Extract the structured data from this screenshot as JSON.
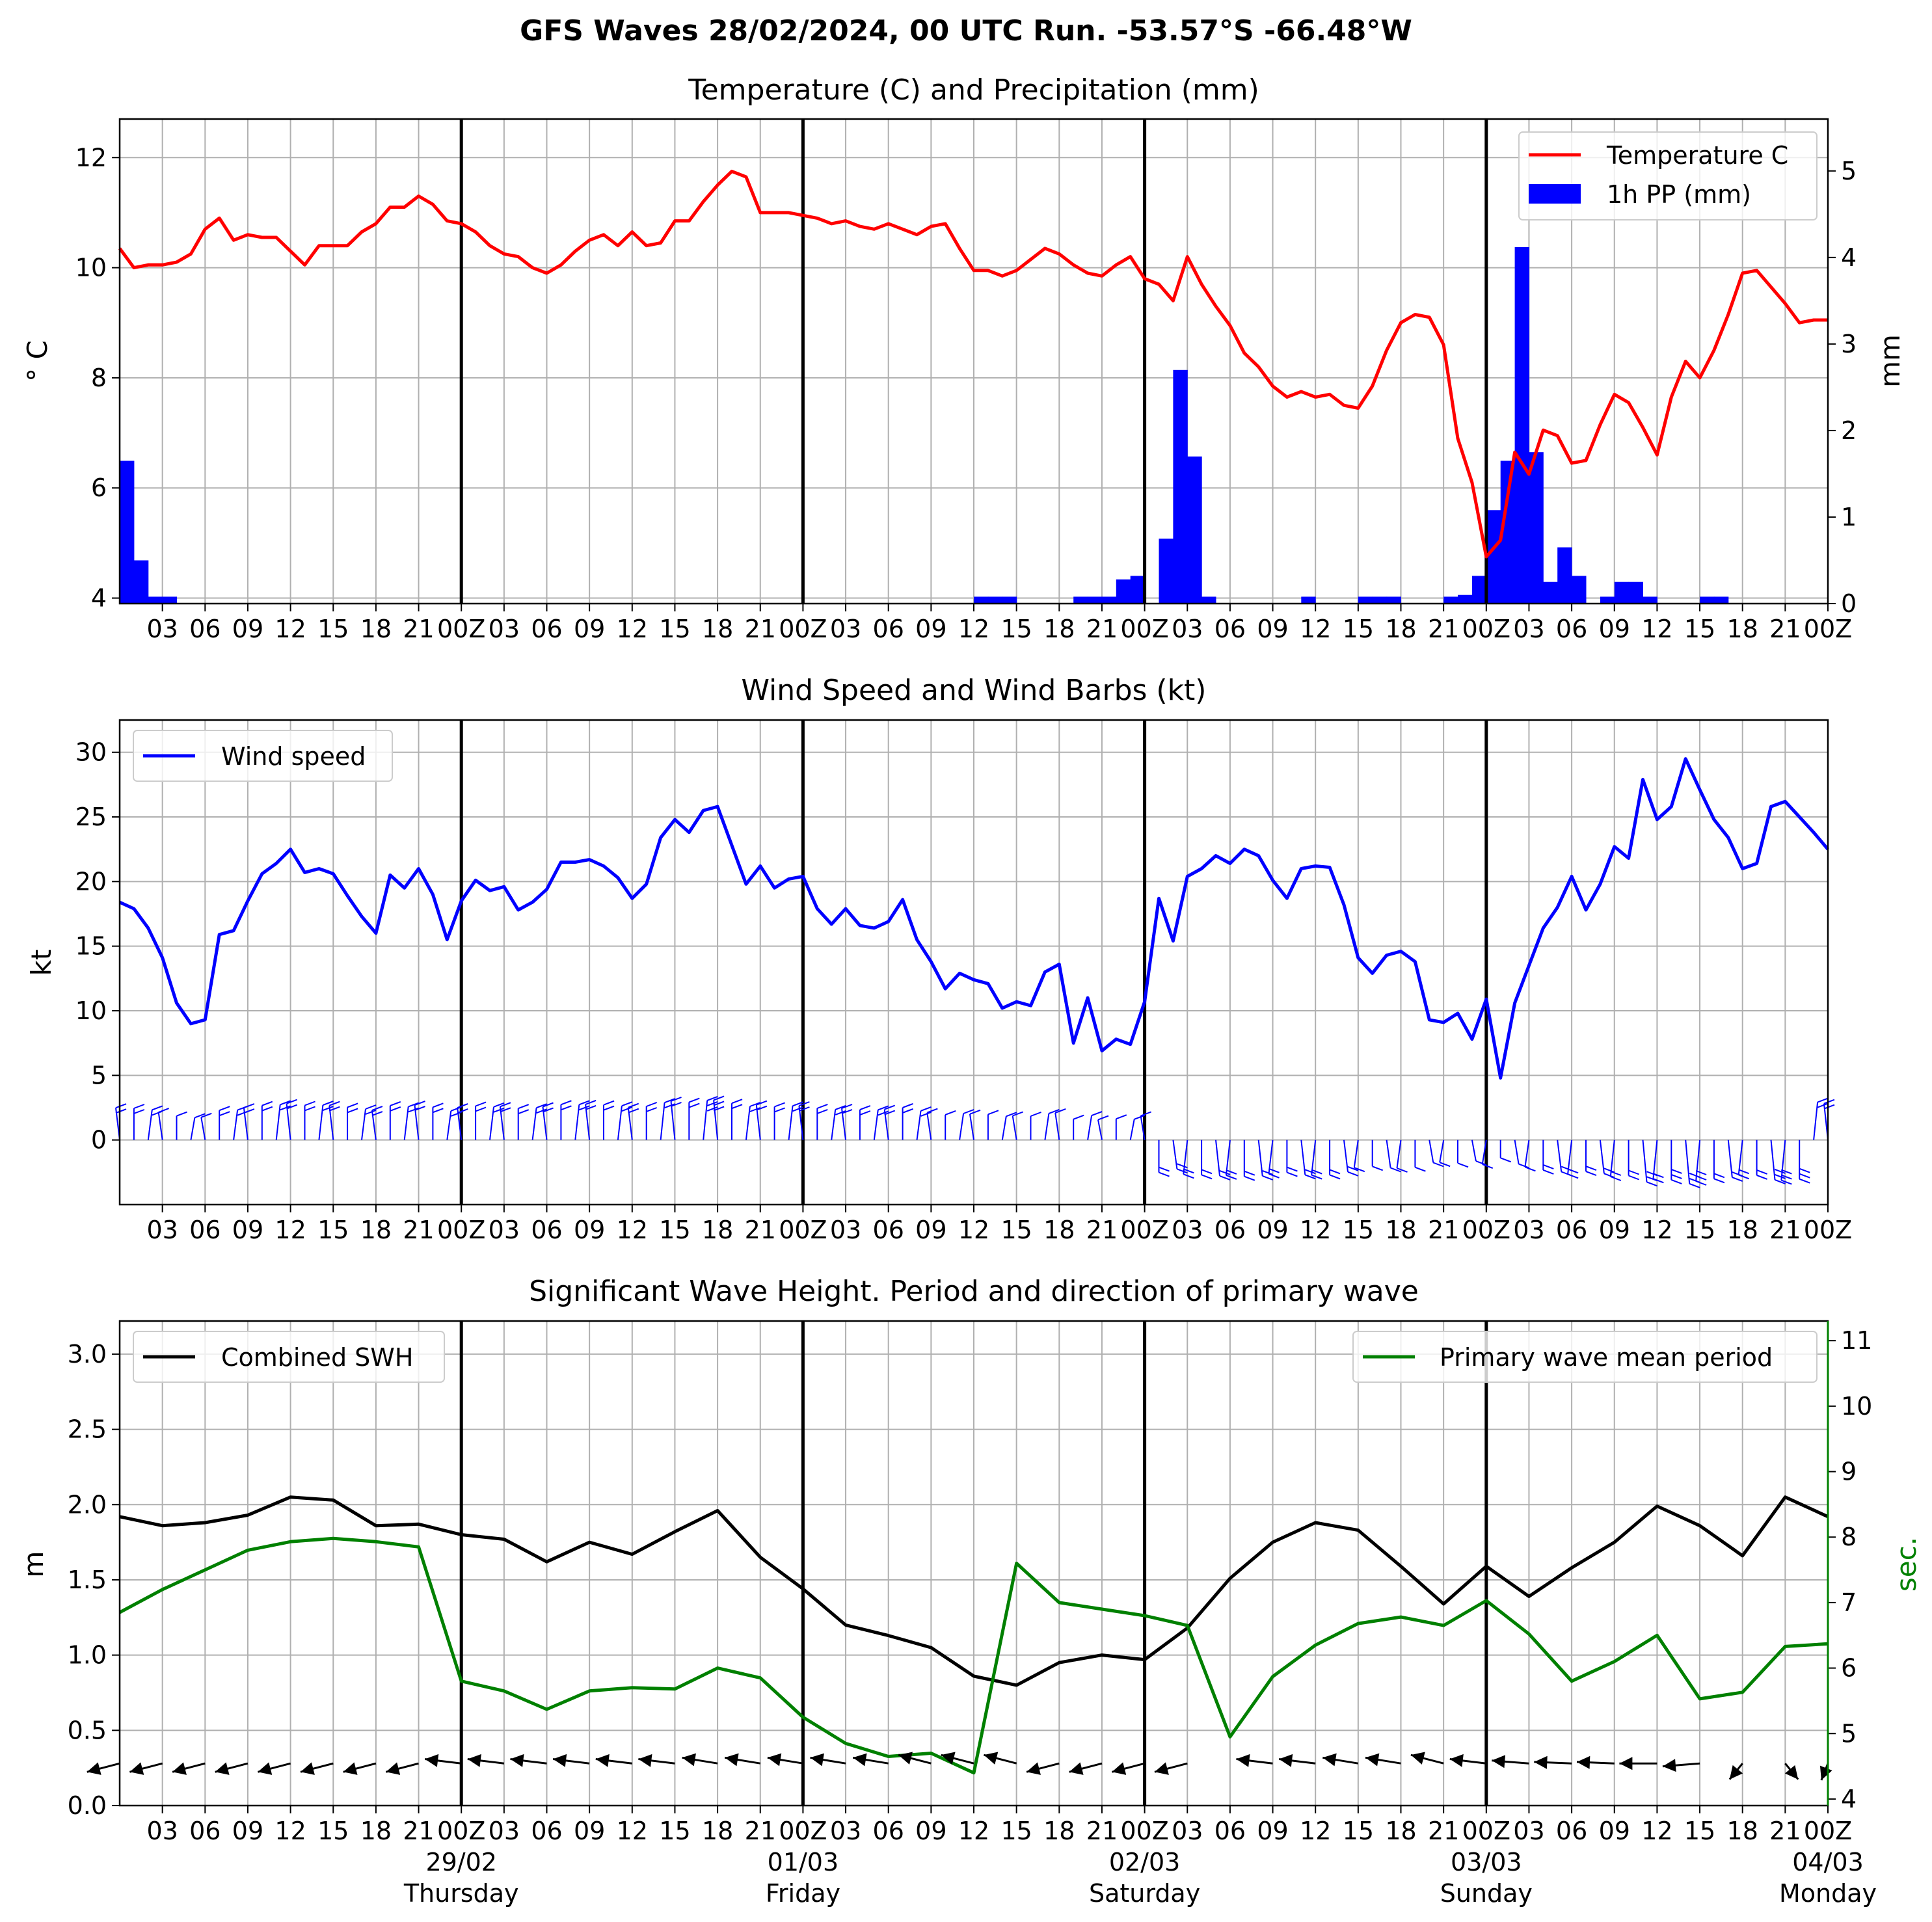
{
  "suptitle": "GFS Waves 28/02/2024, 00 UTC Run. -53.57°S -66.48°W",
  "time_axis": {
    "hours_per_tick": 3,
    "tick_labels": [
      "03",
      "06",
      "09",
      "12",
      "15",
      "18",
      "21",
      "00Z",
      "03",
      "06",
      "09",
      "12",
      "15",
      "18",
      "21",
      "00Z",
      "03",
      "06",
      "09",
      "12",
      "15",
      "18",
      "21",
      "00Z",
      "03",
      "06",
      "09",
      "12",
      "15",
      "18",
      "21",
      "00Z",
      "03",
      "06",
      "09",
      "12",
      "15",
      "18",
      "21",
      "00Z"
    ],
    "day_labels": [
      {
        "date": "29/02",
        "weekday": "Thursday"
      },
      {
        "date": "01/03",
        "weekday": "Friday"
      },
      {
        "date": "02/03",
        "weekday": "Saturday"
      },
      {
        "date": "03/03",
        "weekday": "Sunday"
      },
      {
        "date": "04/03",
        "weekday": "Monday"
      }
    ]
  },
  "chart_data": [
    {
      "type": "line+bar",
      "title": "Temperature (C) and Precipitation (mm)",
      "ylabel": "° C",
      "ylabel2": "mm",
      "ylim": [
        3.9,
        12.7
      ],
      "ylim2": [
        0,
        5.6
      ],
      "yticks": [
        4,
        6,
        8,
        10,
        12
      ],
      "yticks2": [
        0,
        1,
        2,
        3,
        4,
        5
      ],
      "grid": true,
      "legend": "top-right",
      "series": [
        {
          "name": "Temperature C",
          "color": "#ff0000",
          "step_hours": 1,
          "values": [
            10.35,
            10.0,
            10.05,
            10.05,
            10.1,
            10.25,
            10.7,
            10.9,
            10.5,
            10.6,
            10.55,
            10.55,
            10.3,
            10.05,
            10.4,
            10.4,
            10.4,
            10.65,
            10.8,
            11.1,
            11.1,
            11.3,
            11.15,
            10.85,
            10.8,
            10.65,
            10.4,
            10.25,
            10.2,
            10.0,
            9.9,
            10.05,
            10.3,
            10.5,
            10.6,
            10.4,
            10.65,
            10.4,
            10.45,
            10.85,
            10.85,
            11.2,
            11.5,
            11.75,
            11.65,
            11.0,
            11.0,
            11.0,
            10.95,
            10.9,
            10.8,
            10.85,
            10.75,
            10.7,
            10.8,
            10.7,
            10.6,
            10.75,
            10.8,
            10.35,
            9.95,
            9.95,
            9.85,
            9.95,
            10.15,
            10.35,
            10.25,
            10.05,
            9.9,
            9.85,
            10.05,
            10.2,
            9.8,
            9.7,
            9.4,
            10.2,
            9.7,
            9.3,
            8.95,
            8.45,
            8.2,
            7.85,
            7.65,
            7.75,
            7.65,
            7.7,
            7.5,
            7.45,
            7.85,
            8.5,
            9.0,
            9.15,
            9.1,
            8.6,
            6.9,
            6.1,
            4.75,
            5.05,
            6.65,
            6.25,
            7.05,
            6.95,
            6.45,
            6.5,
            7.15,
            7.7,
            7.55,
            7.1,
            6.6,
            7.65,
            8.3,
            8.0,
            8.5,
            9.15,
            9.9,
            9.95,
            9.65,
            9.35,
            9.0,
            9.05,
            9.05
          ]
        },
        {
          "name": "1h PP (mm)",
          "color": "#0000ff",
          "type": "bar",
          "step_hours": 1,
          "values": [
            1.65,
            0.5,
            0.08,
            0.08,
            0,
            0,
            0,
            0,
            0,
            0,
            0,
            0,
            0,
            0,
            0,
            0,
            0,
            0,
            0,
            0,
            0,
            0,
            0,
            0,
            0,
            0,
            0,
            0,
            0,
            0,
            0,
            0,
            0,
            0,
            0,
            0,
            0,
            0,
            0,
            0,
            0,
            0,
            0,
            0,
            0,
            0,
            0,
            0,
            0,
            0,
            0,
            0,
            0,
            0,
            0,
            0,
            0,
            0,
            0,
            0,
            0.08,
            0.08,
            0.08,
            0,
            0,
            0,
            0,
            0.08,
            0.08,
            0.08,
            0.28,
            0.32,
            0,
            0.75,
            2.7,
            1.7,
            0.08,
            0,
            0,
            0,
            0,
            0,
            0,
            0.08,
            0,
            0,
            0,
            0.08,
            0.08,
            0.08,
            0,
            0,
            0,
            0.08,
            0.1,
            0.32,
            1.08,
            1.65,
            4.12,
            1.75,
            0.25,
            0.65,
            0.32,
            0,
            0.08,
            0.25,
            0.25,
            0.08,
            0,
            0,
            0,
            0.08,
            0.08,
            0,
            0,
            0,
            0,
            0,
            0,
            0,
            0,
            0
          ]
        }
      ]
    },
    {
      "type": "line+barbs",
      "title": "Wind Speed and Wind Barbs (kt)",
      "ylabel": "kt",
      "ylim": [
        -5,
        32.5
      ],
      "yticks": [
        0,
        5,
        10,
        15,
        20,
        25,
        30
      ],
      "grid": true,
      "legend": "top-left",
      "series": [
        {
          "name": "Wind speed",
          "color": "#0000ff",
          "step_hours": 1,
          "values": [
            18.4,
            17.9,
            16.4,
            14.1,
            10.6,
            9.0,
            9.3,
            15.9,
            16.2,
            18.5,
            20.6,
            21.4,
            22.5,
            20.7,
            21.0,
            20.6,
            18.9,
            17.3,
            16.0,
            20.5,
            19.5,
            21.0,
            19.0,
            15.5,
            18.5,
            20.1,
            19.3,
            19.6,
            17.8,
            18.4,
            19.4,
            21.5,
            21.5,
            21.7,
            21.2,
            20.3,
            18.7,
            19.8,
            23.4,
            24.8,
            23.8,
            25.5,
            25.8,
            22.8,
            19.8,
            21.2,
            19.5,
            20.2,
            20.4,
            17.9,
            16.7,
            17.9,
            16.6,
            16.4,
            16.9,
            18.6,
            15.5,
            13.8,
            11.7,
            12.9,
            12.4,
            12.1,
            10.2,
            10.7,
            10.4,
            13.0,
            13.6,
            7.5,
            11.0,
            6.9,
            7.8,
            7.4,
            10.7,
            18.7,
            15.4,
            20.4,
            21.0,
            22.0,
            21.4,
            22.5,
            22.0,
            20.1,
            18.7,
            21.0,
            21.2,
            21.1,
            18.2,
            14.1,
            12.9,
            14.3,
            14.6,
            13.8,
            9.3,
            9.1,
            9.8,
            7.8,
            10.9,
            4.8,
            10.6,
            13.5,
            16.4,
            18.0,
            20.4,
            17.8,
            19.8,
            22.7,
            21.8,
            27.9,
            24.8,
            25.8,
            29.5,
            27.1,
            24.8,
            23.4,
            21.0,
            21.4,
            25.8,
            26.2,
            25.0,
            23.8,
            22.5
          ]
        }
      ],
      "barbs": {
        "color": "#0000ff",
        "every_hours": 1
      }
    },
    {
      "type": "line+arrows",
      "title": "Significant Wave Height. Period and direction of primary wave",
      "ylabel": "m",
      "ylabel2": "sec.",
      "ylim": [
        0,
        3.22
      ],
      "ylim2": [
        3.9,
        11.3
      ],
      "yticks": [
        0.0,
        0.5,
        1.0,
        1.5,
        2.0,
        2.5,
        3.0
      ],
      "yticks2": [
        4,
        5,
        6,
        7,
        8,
        9,
        10,
        11
      ],
      "grid": true,
      "series": [
        {
          "name": "Combined SWH",
          "color": "#000000",
          "legend": "top-left",
          "step_hours": 3,
          "values": [
            1.92,
            1.86,
            1.88,
            1.93,
            2.05,
            2.03,
            1.86,
            1.87,
            1.8,
            1.77,
            1.62,
            1.75,
            1.67,
            1.82,
            1.96,
            1.65,
            1.44,
            1.2,
            1.13,
            1.05,
            0.86,
            0.8,
            0.95,
            1.0,
            0.97,
            1.18,
            1.51,
            1.75,
            1.88,
            1.83,
            1.59,
            1.34,
            1.59,
            1.39,
            1.58,
            1.75,
            1.99,
            1.86,
            1.66,
            2.05,
            1.92
          ]
        },
        {
          "name": "Primary wave mean period",
          "color": "#008000",
          "legend": "top-right",
          "axis": "right",
          "step_hours": 3,
          "values": [
            6.85,
            7.2,
            7.5,
            7.8,
            7.93,
            7.98,
            7.93,
            7.85,
            5.8,
            5.65,
            5.37,
            5.65,
            5.7,
            5.68,
            6.0,
            5.85,
            5.25,
            4.85,
            4.65,
            4.7,
            4.4,
            7.6,
            7.0,
            6.9,
            6.8,
            6.65,
            4.95,
            5.87,
            6.35,
            6.68,
            6.78,
            6.65,
            7.03,
            6.52,
            5.8,
            6.1,
            6.5,
            5.53,
            5.63,
            6.33,
            6.37
          ]
        }
      ],
      "arrows": {
        "color": "#000000",
        "step_hours": 3,
        "direction_deg": [
          240,
          240,
          240,
          240,
          240,
          240,
          240,
          240,
          285,
          285,
          285,
          285,
          285,
          285,
          290,
          290,
          290,
          290,
          290,
          300,
          300,
          300,
          240,
          240,
          240,
          240,
          null,
          285,
          285,
          290,
          290,
          300,
          285,
          280,
          275,
          275,
          270,
          260,
          200,
          160,
          190
        ]
      }
    }
  ]
}
